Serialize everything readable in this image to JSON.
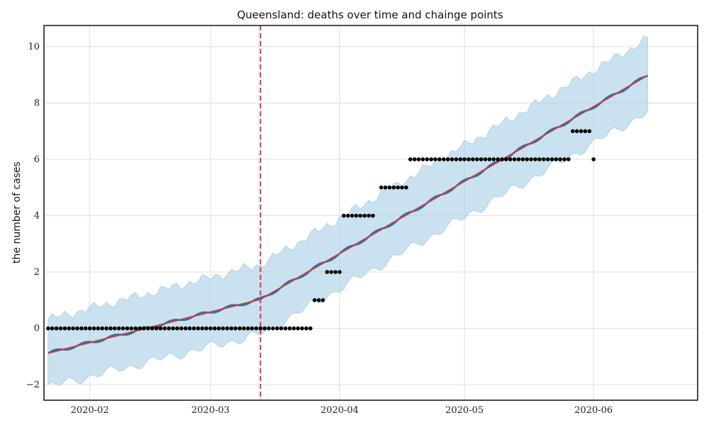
{
  "chart_data": {
    "type": "line",
    "title": "Queensland: deaths over time and chainge points",
    "xlabel": "",
    "ylabel": "the number of cases",
    "x_domain": [
      "2020-01-21",
      "2020-06-26"
    ],
    "ylim": [
      -2.55,
      10.75
    ],
    "x_ticks": [
      "2020-02",
      "2020-03",
      "2020-04",
      "2020-05",
      "2020-06"
    ],
    "x_tick_dates": [
      "2020-02-01",
      "2020-03-01",
      "2020-04-01",
      "2020-05-01",
      "2020-06-01"
    ],
    "y_ticks": [
      -2,
      0,
      2,
      4,
      6,
      8,
      10
    ],
    "y_tick_labels": [
      "−2",
      "0",
      "2",
      "4",
      "6",
      "8",
      "10"
    ],
    "grid": true,
    "forecast_start": "2020-01-22",
    "forecast_end": "2020-06-14",
    "trend_start": -0.88,
    "trend_changepoint": 1.03,
    "trend_end": 8.98,
    "uncertainty_halfwidth_start": 1.2,
    "uncertainty_halfwidth_end": 1.3,
    "changepoint": "2020-03-13",
    "observations": [
      {
        "from": "2020-01-22",
        "to": "2020-03-25",
        "value": 0
      },
      {
        "from": "2020-03-26",
        "to": "2020-03-28",
        "value": 1
      },
      {
        "from": "2020-03-29",
        "to": "2020-04-01",
        "value": 2
      },
      {
        "from": "2020-04-02",
        "to": "2020-04-09",
        "value": 4
      },
      {
        "from": "2020-04-11",
        "to": "2020-04-17",
        "value": 5
      },
      {
        "from": "2020-04-18",
        "to": "2020-05-26",
        "value": 6
      },
      {
        "from": "2020-05-27",
        "to": "2020-05-31",
        "value": 7
      },
      {
        "from": "2020-06-01",
        "to": "2020-06-01",
        "value": 6
      }
    ],
    "colors": {
      "forecast": "#1f77b4",
      "trend": "#c83c3c",
      "uncertainty": "#b4d4e8",
      "changepoint": "#c83c3c",
      "observation": "#000000"
    }
  }
}
